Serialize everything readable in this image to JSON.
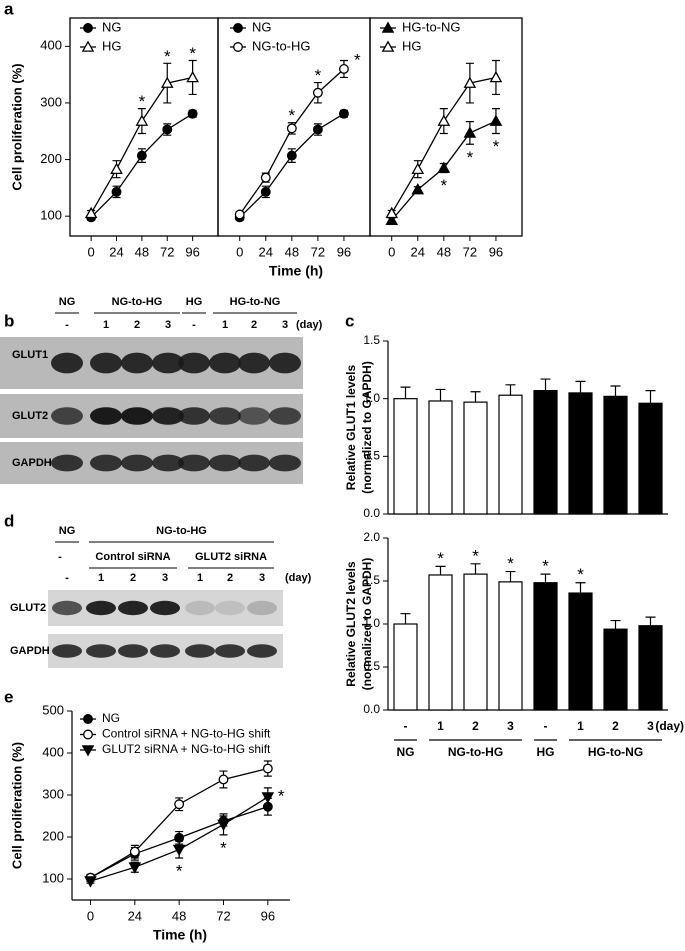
{
  "panel_labels": [
    "a",
    "b",
    "c",
    "d",
    "e"
  ],
  "chart_data": [
    {
      "type": "line",
      "ylabel": "Cell proliferation (%)",
      "x": [
        0,
        24,
        48,
        72,
        96
      ],
      "xlim": [
        -20,
        120
      ],
      "xticks": [
        0,
        24,
        48,
        72,
        96
      ],
      "ylim": [
        65,
        450
      ],
      "yticks": [
        100,
        200,
        300,
        400
      ],
      "legend": "upper left",
      "series": [
        {
          "name": "NG",
          "color": "#000000",
          "marker": "circle-filled",
          "values": [
            98,
            143,
            207,
            253,
            281
          ],
          "errors": [
            5,
            10,
            12,
            10,
            6
          ]
        },
        {
          "name": "HG",
          "color": "#000000",
          "marker": "triangle-open",
          "values": [
            105,
            183,
            268,
            335,
            345
          ],
          "errors": [
            5,
            15,
            22,
            35,
            30
          ],
          "significance": [
            null,
            null,
            "*",
            "*",
            "*"
          ]
        }
      ]
    },
    {
      "type": "line",
      "xlabel": "Time (h)",
      "x": [
        0,
        24,
        48,
        72,
        96
      ],
      "xlim": [
        -20,
        120
      ],
      "xticks": [
        0,
        24,
        48,
        72,
        96
      ],
      "ylim": [
        65,
        450
      ],
      "legend": "upper left",
      "series": [
        {
          "name": "NG",
          "color": "#000000",
          "marker": "circle-filled",
          "values": [
            98,
            143,
            207,
            253,
            281
          ],
          "errors": [
            5,
            10,
            12,
            10,
            6
          ]
        },
        {
          "name": "NG-to-HG",
          "color": "#000000",
          "marker": "circle-open",
          "values": [
            103,
            168,
            255,
            318,
            360
          ],
          "errors": [
            5,
            8,
            10,
            18,
            15
          ],
          "significance": [
            null,
            null,
            "*",
            "*",
            "*"
          ]
        }
      ]
    },
    {
      "type": "line",
      "x": [
        0,
        24,
        48,
        72,
        96
      ],
      "xlim": [
        -20,
        120
      ],
      "xticks": [
        0,
        24,
        48,
        72,
        96
      ],
      "ylim": [
        65,
        450
      ],
      "legend": "upper left",
      "series": [
        {
          "name": "HG-to-NG",
          "color": "#000000",
          "marker": "triangle-filled",
          "values": [
            93,
            147,
            185,
            247,
            268
          ],
          "errors": [
            4,
            5,
            8,
            20,
            22
          ],
          "significance": [
            null,
            null,
            "*",
            "*",
            "*"
          ]
        },
        {
          "name": "HG",
          "color": "#000000",
          "marker": "triangle-open",
          "values": [
            105,
            183,
            268,
            335,
            345
          ],
          "errors": [
            5,
            15,
            22,
            35,
            30
          ]
        }
      ]
    },
    {
      "type": "bar",
      "ylabel": [
        "Relative GLUT1 levels",
        "(normalized to GAPDH)"
      ],
      "ylim": [
        0,
        1.5
      ],
      "yticks": [
        {
          "value": 0,
          "label": "0.0"
        },
        {
          "value": 0.5,
          "label": "0.5"
        },
        {
          "value": 1,
          "label": "1.0"
        },
        {
          "value": 1.5,
          "label": "1.5"
        }
      ],
      "values": [
        1.0,
        0.98,
        0.97,
        1.03,
        1.07,
        1.05,
        1.02,
        0.96
      ],
      "errors": [
        0.1,
        0.1,
        0.09,
        0.09,
        0.1,
        0.1,
        0.09,
        0.11
      ],
      "colors": [
        "#ffffff",
        "#ffffff",
        "#ffffff",
        "#ffffff",
        "#000000",
        "#000000",
        "#000000",
        "#000000"
      ]
    },
    {
      "type": "bar",
      "ylabel": [
        "Relative GLUT2 levels",
        "(normalized to GAPDH)"
      ],
      "ylim": [
        0,
        2
      ],
      "yticks": [
        {
          "value": 0,
          "label": "0.0"
        },
        {
          "value": 0.5,
          "label": "0.5"
        },
        {
          "value": 1,
          "label": "1.0"
        },
        {
          "value": 1.5,
          "label": "1.5"
        },
        {
          "value": 2,
          "label": "2.0"
        }
      ],
      "values": [
        1.0,
        1.57,
        1.58,
        1.49,
        1.48,
        1.36,
        0.94,
        0.98
      ],
      "errors": [
        0.12,
        0.1,
        0.12,
        0.12,
        0.1,
        0.12,
        0.1,
        0.1
      ],
      "colors": [
        "#ffffff",
        "#ffffff",
        "#ffffff",
        "#ffffff",
        "#000000",
        "#000000",
        "#000000",
        "#000000"
      ],
      "significance": [
        null,
        "*",
        "*",
        "*",
        "*",
        "*",
        null,
        null
      ],
      "groups": [
        {
          "name": "NG",
          "categories": [
            "-"
          ]
        },
        {
          "name": "NG-to-HG",
          "categories": [
            "1",
            "2",
            "3"
          ]
        },
        {
          "name": "HG",
          "categories": [
            "-"
          ]
        },
        {
          "name": "HG-to-NG",
          "categories": [
            "1",
            "2",
            "3"
          ]
        }
      ],
      "category_unit": "(day)"
    },
    {
      "type": "line",
      "ylabel": "Cell proliferation (%)",
      "xlabel": "Time (h)",
      "x": [
        0,
        24,
        48,
        72,
        96
      ],
      "xlim": [
        -10,
        108
      ],
      "xticks": [
        0,
        24,
        48,
        72,
        96
      ],
      "ylim": [
        50,
        500
      ],
      "yticks": [
        100,
        200,
        300,
        400,
        500
      ],
      "legend": "upper left",
      "series": [
        {
          "name": "NG",
          "color": "#000000",
          "marker": "circle-filled",
          "values": [
            103,
            160,
            198,
            238,
            272
          ],
          "errors": [
            6,
            15,
            15,
            12,
            20
          ]
        },
        {
          "name": "Control siRNA + NG-to-HG shift",
          "color": "#000000",
          "marker": "circle-open",
          "values": [
            103,
            165,
            278,
            337,
            363
          ],
          "errors": [
            8,
            15,
            15,
            20,
            18
          ]
        },
        {
          "name": "GLUT2 siRNA + NG-to-HG shift",
          "color": "#000000",
          "marker": "triangle-down-filled",
          "values": [
            95,
            128,
            170,
            230,
            295
          ],
          "errors": [
            5,
            12,
            20,
            25,
            22
          ],
          "significance": [
            null,
            null,
            "*",
            "*",
            "*"
          ]
        }
      ]
    }
  ],
  "blots": {
    "b": {
      "groups": [
        {
          "name": "NG",
          "lanes": [
            "-"
          ]
        },
        {
          "name": "NG-to-HG",
          "lanes": [
            "1",
            "2",
            "3"
          ]
        },
        {
          "name": "HG",
          "lanes": [
            "-"
          ]
        },
        {
          "name": "HG-to-NG",
          "lanes": [
            "1",
            "2",
            "3"
          ]
        }
      ],
      "unit": "(day)",
      "rows": [
        "GLUT1",
        "GLUT2",
        "GAPDH"
      ]
    },
    "d": {
      "groups": [
        {
          "name": "NG",
          "subgroups": [
            {
              "name": "-",
              "lanes": [
                "-"
              ]
            }
          ]
        },
        {
          "name": "NG-to-HG",
          "subgroups": [
            {
              "name": "Control siRNA",
              "lanes": [
                "1",
                "2",
                "3"
              ]
            },
            {
              "name": "GLUT2 siRNA",
              "lanes": [
                "1",
                "2",
                "3"
              ]
            }
          ]
        }
      ],
      "unit": "(day)",
      "rows": [
        "GLUT2",
        "GAPDH"
      ]
    }
  }
}
